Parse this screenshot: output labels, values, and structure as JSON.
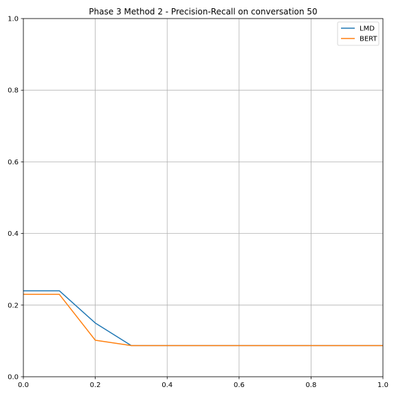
{
  "chart_data": {
    "type": "line",
    "title": "Phase 3 Method 2 - Precision-Recall on conversation 50",
    "xlabel": "",
    "ylabel": "",
    "xlim": [
      0,
      1
    ],
    "ylim": [
      0,
      1
    ],
    "xticks": [
      "0.0",
      "0.2",
      "0.4",
      "0.6",
      "0.8",
      "1.0"
    ],
    "yticks": [
      "0.0",
      "0.2",
      "0.4",
      "0.6",
      "0.8",
      "1.0"
    ],
    "grid": true,
    "legend_position": "top-right",
    "series": [
      {
        "name": "LMD",
        "color": "#1f77b4",
        "x": [
          0.0,
          0.1,
          0.2,
          0.3,
          0.4,
          0.5,
          0.6,
          0.7,
          0.8,
          0.9,
          1.0
        ],
        "y": [
          0.24,
          0.24,
          0.15,
          0.087,
          0.087,
          0.087,
          0.087,
          0.087,
          0.087,
          0.087,
          0.087
        ]
      },
      {
        "name": "BERT",
        "color": "#ff7f0e",
        "x": [
          0.0,
          0.1,
          0.2,
          0.3,
          0.4,
          0.5,
          0.6,
          0.7,
          0.8,
          0.9,
          1.0
        ],
        "y": [
          0.23,
          0.23,
          0.102,
          0.087,
          0.087,
          0.087,
          0.087,
          0.087,
          0.087,
          0.087,
          0.087
        ]
      }
    ]
  }
}
